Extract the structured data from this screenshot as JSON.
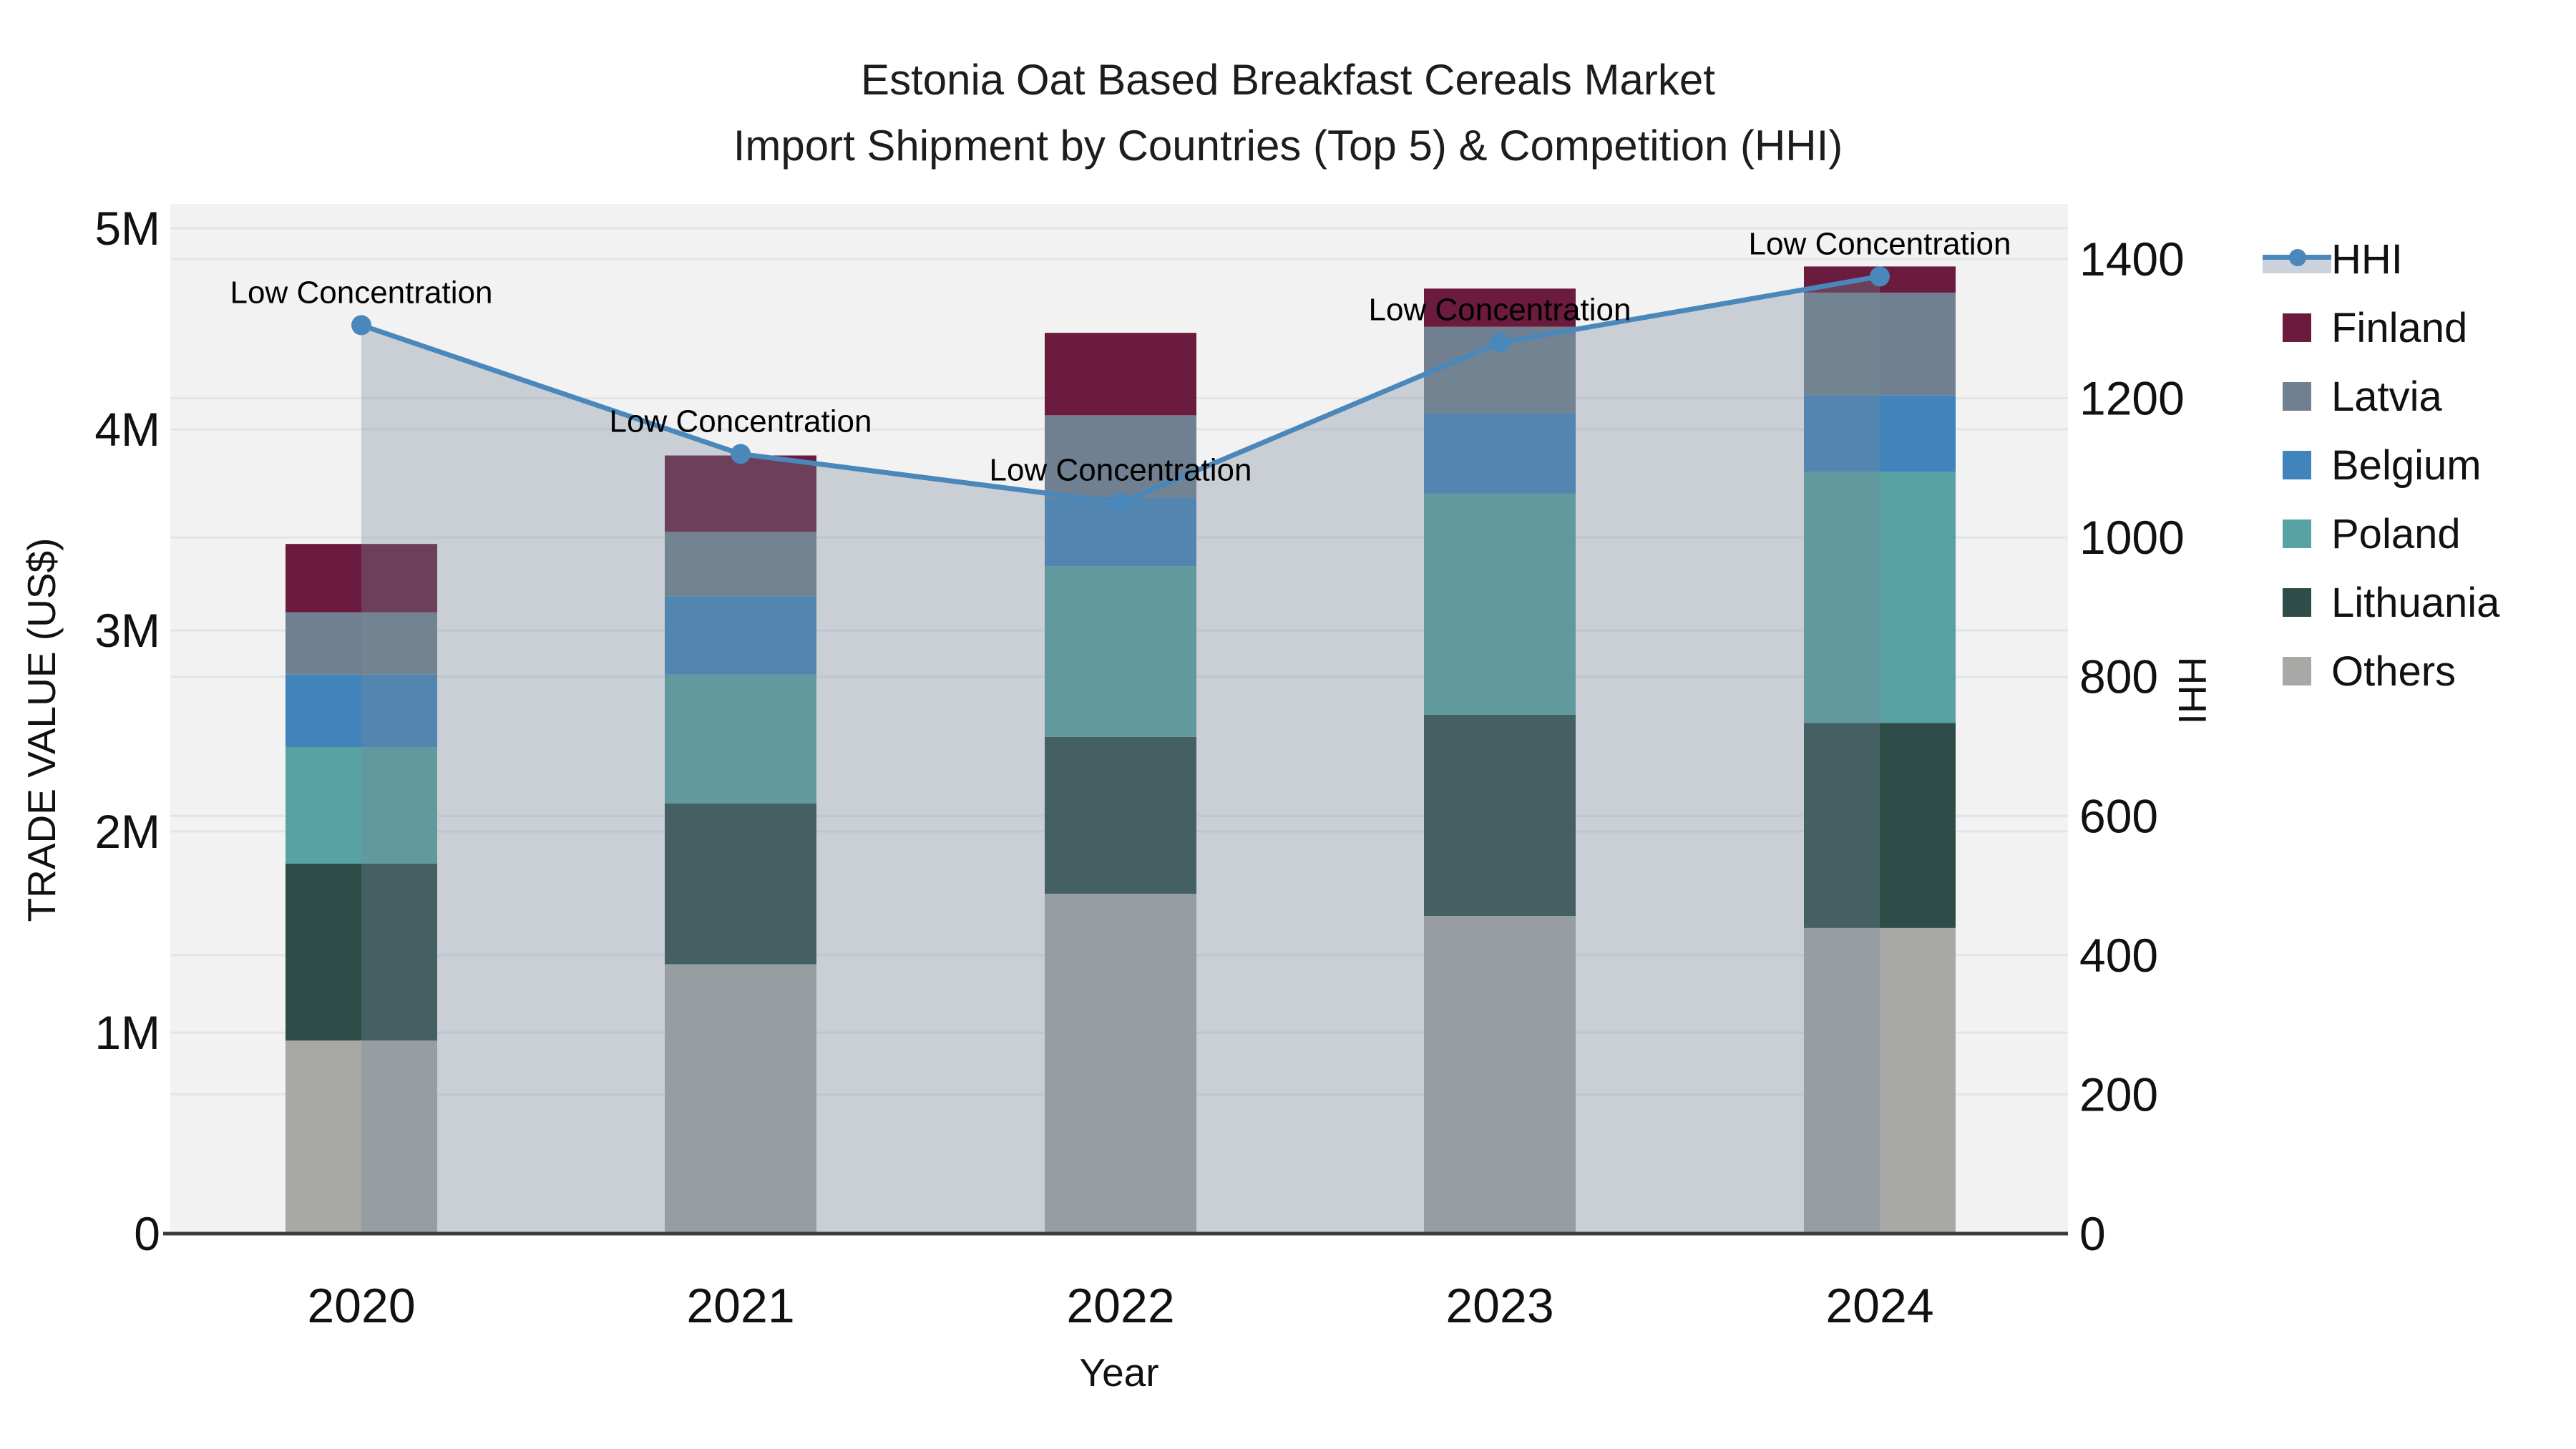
{
  "title": {
    "line1": "Estonia Oat Based Breakfast Cereals Market",
    "line2": "Import Shipment by Countries (Top 5) & Competition (HHI)"
  },
  "axes": {
    "y_left": {
      "title": "TRADE VALUE (US$)",
      "ticks": [
        "0",
        "1M",
        "2M",
        "3M",
        "4M",
        "5M"
      ],
      "max": 5000000
    },
    "y_right": {
      "title": "HHI",
      "ticks": [
        "0",
        "200",
        "400",
        "600",
        "800",
        "1000",
        "1200",
        "1400"
      ],
      "max": 1400
    },
    "x": {
      "title": "Year",
      "categories": [
        "2020",
        "2021",
        "2022",
        "2023",
        "2024"
      ]
    }
  },
  "legend_items": [
    {
      "label": "HHI",
      "kind": "line"
    },
    {
      "label": "Finland",
      "kind": "swatch",
      "color": "#6b1b3e"
    },
    {
      "label": "Latvia",
      "kind": "swatch",
      "color": "#708090"
    },
    {
      "label": "Belgium",
      "kind": "swatch",
      "color": "#4183bb"
    },
    {
      "label": "Poland",
      "kind": "swatch",
      "color": "#58a2a3"
    },
    {
      "label": "Lithuania",
      "kind": "swatch",
      "color": "#2e4d48"
    },
    {
      "label": "Others",
      "kind": "swatch",
      "color": "#a8a9a6"
    }
  ],
  "colors": {
    "plot_bg": "#f2f2f3",
    "grid": "#e3e4e8",
    "axis_line": "#3b3b3b",
    "text": "#111111",
    "hhi_line": "#4a87ba",
    "hhi_fill": "rgba(119,136,153,0.33)",
    "hhi_band_sample": "#ccd2dc"
  },
  "chart_data": {
    "type": "stacked-bar-with-line-area",
    "title": "Estonia Oat Based Breakfast Cereals Market — Import Shipment by Countries (Top 5) & Competition (HHI)",
    "xlabel": "Year",
    "ylabel": "TRADE VALUE (US$)",
    "y2label": "HHI",
    "ylim": [
      0,
      5000000
    ],
    "y2lim": [
      0,
      1400
    ],
    "grid": true,
    "legend_position": "right",
    "categories": [
      "2020",
      "2021",
      "2022",
      "2023",
      "2024"
    ],
    "stack_order_bottom_to_top": [
      "Others",
      "Lithuania",
      "Poland",
      "Belgium",
      "Latvia",
      "Finland"
    ],
    "series": [
      {
        "name": "Finland",
        "axis": "left",
        "color": "#6b1b3e",
        "values": [
          340000,
          380000,
          410000,
          190000,
          130000
        ]
      },
      {
        "name": "Latvia",
        "axis": "left",
        "color": "#708090",
        "values": [
          310000,
          320000,
          410000,
          430000,
          510000
        ]
      },
      {
        "name": "Belgium",
        "axis": "left",
        "color": "#4183bb",
        "values": [
          360000,
          390000,
          340000,
          400000,
          380000
        ]
      },
      {
        "name": "Poland",
        "axis": "left",
        "color": "#58a2a3",
        "values": [
          580000,
          640000,
          850000,
          1100000,
          1250000
        ]
      },
      {
        "name": "Lithuania",
        "axis": "left",
        "color": "#2e4d48",
        "values": [
          880000,
          800000,
          780000,
          1000000,
          1020000
        ]
      },
      {
        "name": "Others",
        "axis": "left",
        "color": "#a8a9a6",
        "values": [
          960000,
          1340000,
          1690000,
          1580000,
          1520000
        ]
      }
    ],
    "hhi": {
      "name": "HHI",
      "axis": "right",
      "style": "line+markers+area-fill",
      "values": [
        1305,
        1120,
        1050,
        1280,
        1375
      ]
    },
    "point_annotations": [
      "Low Concentration",
      "Low Concentration",
      "Low Concentration",
      "Low Concentration",
      "Low Concentration"
    ]
  }
}
